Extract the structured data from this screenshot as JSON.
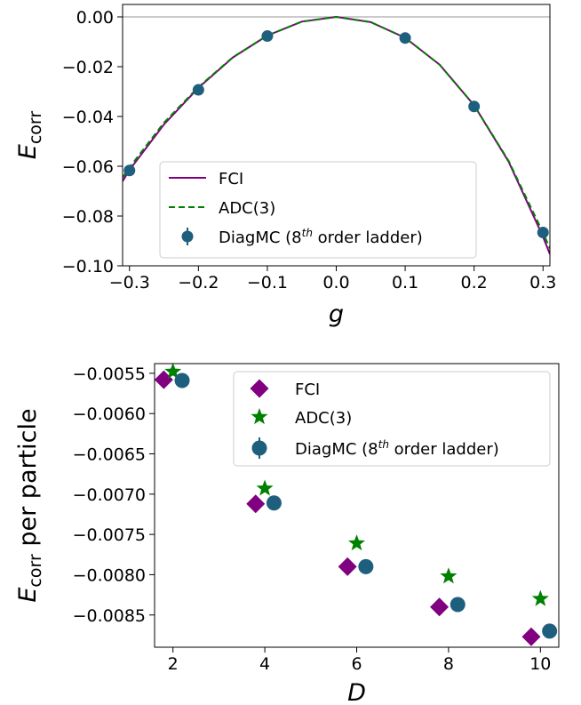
{
  "chart_data": [
    {
      "type": "line",
      "xlabel": "g",
      "ylabel": "E",
      "ylabel_sub": "corr",
      "xlim": [
        -0.31,
        0.31
      ],
      "ylim": [
        -0.1,
        0.005
      ],
      "xticks": [
        -0.3,
        -0.2,
        -0.1,
        0.0,
        0.1,
        0.2,
        0.3
      ],
      "xtick_labels": [
        "−0.3",
        "−0.2",
        "−0.1",
        "0.0",
        "0.1",
        "0.2",
        "0.3"
      ],
      "yticks": [
        0.0,
        -0.02,
        -0.04,
        -0.06,
        -0.08,
        -0.1
      ],
      "ytick_labels": [
        "0.00",
        "−0.02",
        "−0.04",
        "−0.06",
        "−0.08",
        "−0.10"
      ],
      "reference_line_y": 0.0,
      "grid": false,
      "legend_position": "lower-center",
      "series": [
        {
          "name": "FCI",
          "kind": "line",
          "color": "#800080",
          "x": [
            -0.31,
            -0.3,
            -0.25,
            -0.2,
            -0.15,
            -0.1,
            -0.05,
            0.0,
            0.05,
            0.1,
            0.15,
            0.2,
            0.25,
            0.3,
            0.31
          ],
          "y": [
            -0.066,
            -0.0615,
            -0.0432,
            -0.0285,
            -0.0163,
            -0.0075,
            -0.0019,
            0.0,
            -0.0021,
            -0.0084,
            -0.0192,
            -0.0355,
            -0.0581,
            -0.0883,
            -0.0953
          ]
        },
        {
          "name": "ADC(3)",
          "kind": "dashed",
          "color": "#008000",
          "x": [
            -0.31,
            -0.3,
            -0.25,
            -0.2,
            -0.15,
            -0.1,
            -0.05,
            0.0,
            0.05,
            0.1,
            0.15,
            0.2,
            0.25,
            0.3,
            0.31
          ],
          "y": [
            -0.0645,
            -0.0605,
            -0.0425,
            -0.0282,
            -0.0162,
            -0.0075,
            -0.0019,
            0.0,
            -0.0021,
            -0.0084,
            -0.0192,
            -0.0355,
            -0.0578,
            -0.0867,
            -0.093
          ]
        },
        {
          "name": "DiagMC (8<sup>th</sup> order ladder)",
          "name_parts": [
            "DiagMC (8",
            "th",
            " order ladder)"
          ],
          "kind": "marker",
          "color": "#1f5f7e",
          "x": [
            -0.3,
            -0.2,
            -0.1,
            0.1,
            0.2,
            0.3
          ],
          "y": [
            -0.0617,
            -0.0293,
            -0.0077,
            -0.0085,
            -0.036,
            -0.0866
          ]
        }
      ]
    },
    {
      "type": "scatter",
      "xlabel": "D",
      "ylabel": "E",
      "ylabel_sub": "corr",
      "ylabel_suffix": " per particle",
      "xlim": [
        1.6,
        10.4
      ],
      "ylim": [
        -0.0089,
        -0.00538
      ],
      "xticks": [
        2,
        4,
        6,
        8,
        10
      ],
      "xtick_labels": [
        "2",
        "4",
        "6",
        "8",
        "10"
      ],
      "yticks": [
        -0.0055,
        -0.006,
        -0.0065,
        -0.007,
        -0.0075,
        -0.008,
        -0.0085
      ],
      "ytick_labels": [
        "−0.0055",
        "−0.0060",
        "−0.0065",
        "−0.0070",
        "−0.0075",
        "−0.0080",
        "−0.0085"
      ],
      "grid": false,
      "legend_position": "top-right",
      "series": [
        {
          "name": "FCI",
          "marker": "diamond",
          "color": "#800080",
          "x": [
            1.8,
            3.8,
            5.8,
            7.8,
            9.8
          ],
          "y": [
            -0.00558,
            -0.00712,
            -0.0079,
            -0.0084,
            -0.00877
          ]
        },
        {
          "name": "ADC(3)",
          "marker": "star",
          "color": "#008000",
          "x": [
            2.0,
            4.0,
            6.0,
            8.0,
            10.0
          ],
          "y": [
            -0.00548,
            -0.00693,
            -0.00761,
            -0.00802,
            -0.0083
          ]
        },
        {
          "name": "DiagMC (8<sup>th</sup> order ladder)",
          "name_parts": [
            "DiagMC (8",
            "th",
            " order ladder)"
          ],
          "marker": "circle",
          "color": "#1f5f7e",
          "x": [
            2.2,
            4.2,
            6.2,
            8.2,
            10.2
          ],
          "y": [
            -0.00559,
            -0.00711,
            -0.0079,
            -0.00837,
            -0.0087
          ]
        }
      ]
    }
  ]
}
